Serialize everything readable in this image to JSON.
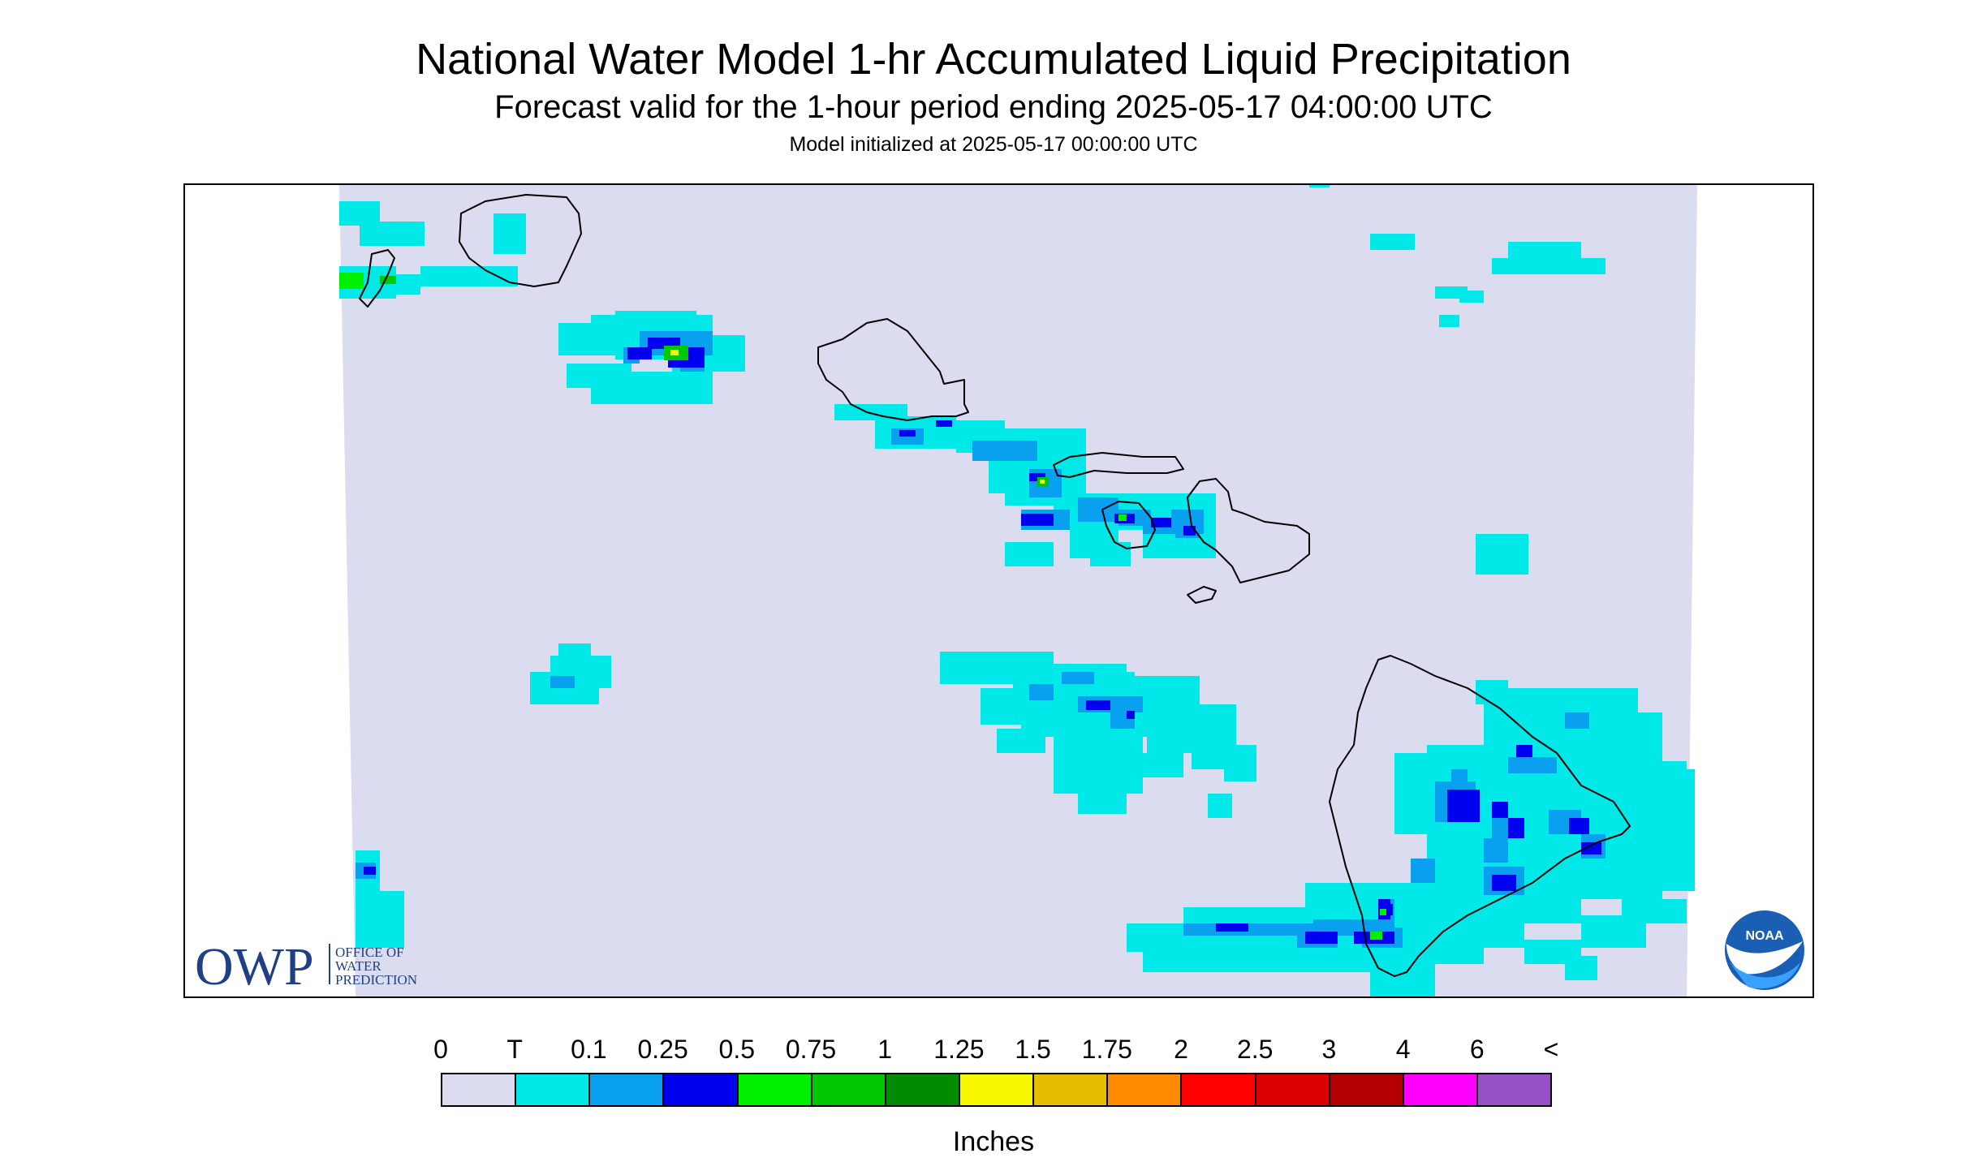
{
  "titles": {
    "main": "National Water Model 1-hr Accumulated Liquid Precipitation",
    "sub": "Forecast valid for the 1-hour period ending 2025-05-17 04:00:00 UTC",
    "init": "Model initialized at 2025-05-17 00:00:00 UTC"
  },
  "legend": {
    "labels": [
      "0",
      "T",
      "0.1",
      "0.25",
      "0.5",
      "0.75",
      "1",
      "1.25",
      "1.5",
      "1.75",
      "2",
      "2.5",
      "3",
      "4",
      "6",
      "<"
    ],
    "colors": [
      "#dcdcf0",
      "#00e8e8",
      "#0aa0f0",
      "#0000f0",
      "#00f000",
      "#00c800",
      "#008c00",
      "#f8f800",
      "#e6be00",
      "#ff8c00",
      "#ff0000",
      "#dc0000",
      "#b40000",
      "#ff00ff",
      "#9650c8"
    ],
    "units": "Inches"
  },
  "map": {
    "region": "Hawaiian Islands",
    "islands": [
      "Niihau",
      "Kauai",
      "Oahu",
      "Molokai",
      "Lanai",
      "Maui",
      "Kahoolawe",
      "Hawaii"
    ]
  },
  "logos": {
    "owp_mark": "OWP",
    "owp_lines": [
      "OFFICE OF",
      "WATER",
      "PREDICTION"
    ],
    "noaa_text": "NOAA"
  }
}
